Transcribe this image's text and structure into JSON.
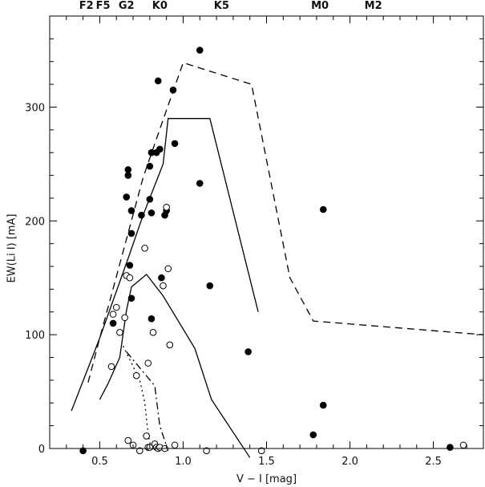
{
  "chart_data": {
    "type": "scatter",
    "title": "",
    "xlabel": "V − I [mag]",
    "ylabel": "EW(Li I) [mA]",
    "xlim": [
      0.2,
      2.8
    ],
    "ylim": [
      0,
      380
    ],
    "grid": false,
    "x_ticks": [
      {
        "value": 0.5,
        "label": "0.5"
      },
      {
        "value": 1.0,
        "label": "1.0"
      },
      {
        "value": 1.5,
        "label": "1.5"
      },
      {
        "value": 2.0,
        "label": "2.0"
      },
      {
        "value": 2.5,
        "label": "2.5"
      }
    ],
    "y_ticks": [
      {
        "value": 0,
        "label": "0"
      },
      {
        "value": 100,
        "label": "100"
      },
      {
        "value": 200,
        "label": "200"
      },
      {
        "value": 300,
        "label": "300"
      }
    ],
    "spectral_types": [
      {
        "label": "F2",
        "x": 0.42
      },
      {
        "label": "F5",
        "x": 0.52
      },
      {
        "label": "G2",
        "x": 0.66
      },
      {
        "label": "K0",
        "x": 0.86
      },
      {
        "label": "K5",
        "x": 1.23
      },
      {
        "label": "M0",
        "x": 1.82
      },
      {
        "label": "M2",
        "x": 2.14
      }
    ],
    "series": [
      {
        "style": "filled",
        "points": [
          [
            0.4,
            -2
          ],
          [
            0.58,
            110
          ],
          [
            0.66,
            221
          ],
          [
            0.67,
            245
          ],
          [
            0.67,
            240
          ],
          [
            0.68,
            161
          ],
          [
            0.69,
            209
          ],
          [
            0.69,
            189
          ],
          [
            0.69,
            132
          ],
          [
            0.75,
            205
          ],
          [
            0.8,
            219
          ],
          [
            0.8,
            248
          ],
          [
            0.81,
            260
          ],
          [
            0.81,
            114
          ],
          [
            0.81,
            207
          ],
          [
            0.84,
            260
          ],
          [
            0.85,
            323
          ],
          [
            0.86,
            263
          ],
          [
            0.87,
            150
          ],
          [
            0.89,
            205
          ],
          [
            0.9,
            209
          ],
          [
            0.94,
            315
          ],
          [
            0.95,
            268
          ],
          [
            1.1,
            350
          ],
          [
            1.1,
            233
          ],
          [
            1.16,
            143
          ],
          [
            1.39,
            85
          ],
          [
            1.78,
            12
          ],
          [
            1.84,
            210
          ],
          [
            1.84,
            38
          ],
          [
            2.6,
            1
          ]
        ]
      },
      {
        "style": "open",
        "points": [
          [
            0.57,
            72
          ],
          [
            0.58,
            118
          ],
          [
            0.6,
            124
          ],
          [
            0.62,
            102
          ],
          [
            0.65,
            115
          ],
          [
            0.66,
            152
          ],
          [
            0.67,
            7
          ],
          [
            0.68,
            150
          ],
          [
            0.7,
            3
          ],
          [
            0.72,
            64
          ],
          [
            0.74,
            -2
          ],
          [
            0.77,
            176
          ],
          [
            0.78,
            11
          ],
          [
            0.79,
            75
          ],
          [
            0.79,
            1
          ],
          [
            0.8,
            1
          ],
          [
            0.82,
            102
          ],
          [
            0.83,
            4
          ],
          [
            0.84,
            1
          ],
          [
            0.85,
            0
          ],
          [
            0.86,
            1
          ],
          [
            0.88,
            143
          ],
          [
            0.89,
            0
          ],
          [
            0.9,
            212
          ],
          [
            0.91,
            158
          ],
          [
            0.92,
            91
          ],
          [
            0.95,
            3
          ],
          [
            1.14,
            -2
          ],
          [
            1.47,
            -2
          ],
          [
            2.68,
            3
          ]
        ]
      },
      {
        "style": "solid",
        "points": [
          [
            0.33,
            33
          ],
          [
            0.5,
            97
          ],
          [
            0.67,
            167
          ],
          [
            0.76,
            205
          ],
          [
            0.88,
            250
          ],
          [
            0.91,
            290
          ],
          [
            1.16,
            290
          ],
          [
            1.45,
            120
          ]
        ]
      },
      {
        "style": "solid",
        "points": [
          [
            0.5,
            43
          ],
          [
            0.55,
            57
          ],
          [
            0.62,
            80
          ],
          [
            0.66,
            121
          ],
          [
            0.69,
            142
          ],
          [
            0.78,
            153
          ],
          [
            0.88,
            134
          ],
          [
            1.07,
            88
          ],
          [
            1.17,
            43
          ],
          [
            1.4,
            -8
          ]
        ]
      },
      {
        "style": "dashed",
        "points": [
          [
            0.43,
            58
          ],
          [
            0.5,
            97
          ],
          [
            0.76,
            238
          ],
          [
            0.88,
            289
          ],
          [
            1.0,
            339
          ],
          [
            1.41,
            320
          ],
          [
            1.64,
            150
          ],
          [
            1.78,
            112
          ],
          [
            2.8,
            100
          ]
        ]
      },
      {
        "style": "dotted",
        "points": [
          [
            0.64,
            90
          ],
          [
            0.74,
            60
          ],
          [
            0.77,
            40
          ],
          [
            0.79,
            13
          ],
          [
            0.81,
            -2
          ]
        ]
      },
      {
        "style": "dashdot",
        "points": [
          [
            0.66,
            85
          ],
          [
            0.83,
            55
          ],
          [
            0.86,
            20
          ],
          [
            0.91,
            -2
          ]
        ]
      }
    ]
  }
}
